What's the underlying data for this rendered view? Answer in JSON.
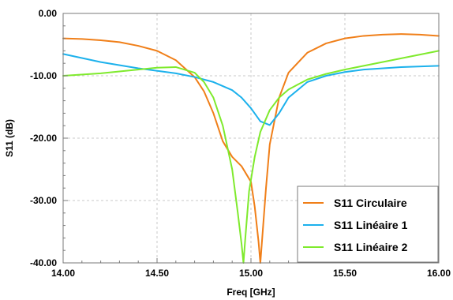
{
  "chart_data": {
    "type": "line",
    "title": "",
    "xlabel": "Freq [GHz]",
    "ylabel": "S11 (dB)",
    "xlim": [
      14.0,
      16.0
    ],
    "ylim": [
      -40.0,
      0.0
    ],
    "x_ticks": [
      "14.00",
      "14.50",
      "15.00",
      "15.50",
      "16.00"
    ],
    "x_tick_values": [
      14.0,
      14.5,
      15.0,
      15.5,
      16.0
    ],
    "y_ticks": [
      "0.00",
      "-10.00",
      "-20.00",
      "-30.00",
      "-40.00"
    ],
    "y_tick_values": [
      0,
      -10,
      -20,
      -30,
      -40
    ],
    "grid": true,
    "legend_position": "bottom-right",
    "series": [
      {
        "name": "S11 Circulaire",
        "color": "#F07F19",
        "x": [
          14.0,
          14.1,
          14.2,
          14.3,
          14.4,
          14.5,
          14.6,
          14.7,
          14.75,
          14.8,
          14.85,
          14.9,
          14.95,
          15.0,
          15.02,
          15.04,
          15.05,
          15.06,
          15.08,
          15.1,
          15.15,
          15.2,
          15.3,
          15.4,
          15.5,
          15.6,
          15.7,
          15.8,
          15.9,
          16.0
        ],
        "y": [
          -4.0,
          -4.1,
          -4.3,
          -4.6,
          -5.2,
          -6.0,
          -7.5,
          -10.2,
          -12.5,
          -16.0,
          -20.5,
          -23.0,
          -24.5,
          -27.0,
          -31.0,
          -36.5,
          -40.0,
          -36.0,
          -28.0,
          -21.0,
          -13.5,
          -9.5,
          -6.3,
          -4.8,
          -4.0,
          -3.6,
          -3.4,
          -3.3,
          -3.4,
          -3.6
        ]
      },
      {
        "name": "S11 Linéaire 1",
        "color": "#1CB1EC",
        "x": [
          14.0,
          14.2,
          14.4,
          14.6,
          14.7,
          14.8,
          14.9,
          14.95,
          15.0,
          15.05,
          15.1,
          15.15,
          15.2,
          15.3,
          15.4,
          15.5,
          15.6,
          15.8,
          16.0
        ],
        "y": [
          -6.5,
          -7.8,
          -8.8,
          -9.6,
          -10.2,
          -11.0,
          -12.3,
          -13.5,
          -15.2,
          -17.3,
          -17.9,
          -16.0,
          -13.5,
          -11.0,
          -10.0,
          -9.4,
          -9.0,
          -8.6,
          -8.4
        ]
      },
      {
        "name": "S11 Linéaire 2",
        "color": "#7FEA2D",
        "x": [
          14.0,
          14.2,
          14.4,
          14.5,
          14.6,
          14.7,
          14.75,
          14.8,
          14.85,
          14.9,
          14.93,
          14.95,
          14.96,
          14.97,
          14.99,
          15.02,
          15.05,
          15.1,
          15.15,
          15.2,
          15.3,
          15.4,
          15.5,
          15.6,
          15.8,
          16.0
        ],
        "y": [
          -10.0,
          -9.6,
          -9.0,
          -8.7,
          -8.6,
          -9.5,
          -11.0,
          -13.5,
          -18.0,
          -25.0,
          -32.0,
          -37.0,
          -40.0,
          -36.0,
          -28.5,
          -23.0,
          -19.0,
          -15.5,
          -13.5,
          -12.2,
          -10.6,
          -9.7,
          -9.0,
          -8.4,
          -7.2,
          -6.0
        ]
      }
    ]
  }
}
